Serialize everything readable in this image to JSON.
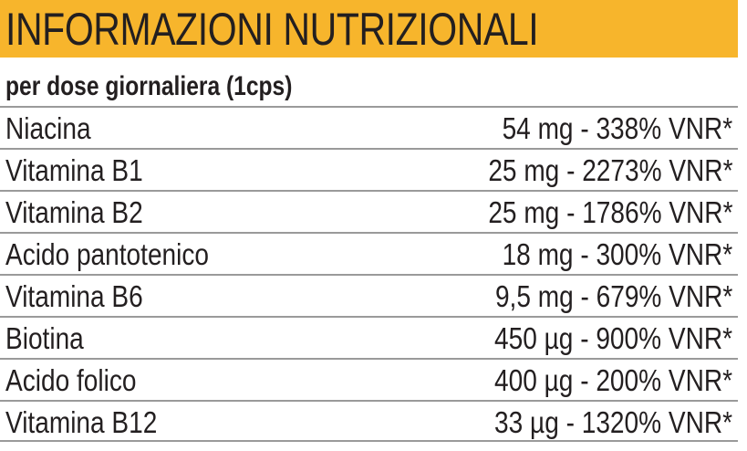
{
  "header": {
    "title": "INFORMAZIONI NUTRIZIONALI"
  },
  "table": {
    "subtitle": "per dose giornaliera (1cps)",
    "rows": [
      [
        "Niacina",
        "54 mg - 338% VNR*"
      ],
      [
        "Vitamina B1",
        "25 mg - 2273% VNR*"
      ],
      [
        "Vitamina B2",
        "25 mg - 1786% VNR*"
      ],
      [
        "Acido pantotenico",
        "18 mg - 300% VNR*"
      ],
      [
        "Vitamina B6",
        "9,5 mg - 679% VNR*"
      ],
      [
        "Biotina",
        "450 µg - 900% VNR*"
      ],
      [
        "Acido folico",
        "400 µg - 200% VNR*"
      ],
      [
        "Vitamina B12",
        "33 µg - 1320% VNR*"
      ]
    ]
  }
}
